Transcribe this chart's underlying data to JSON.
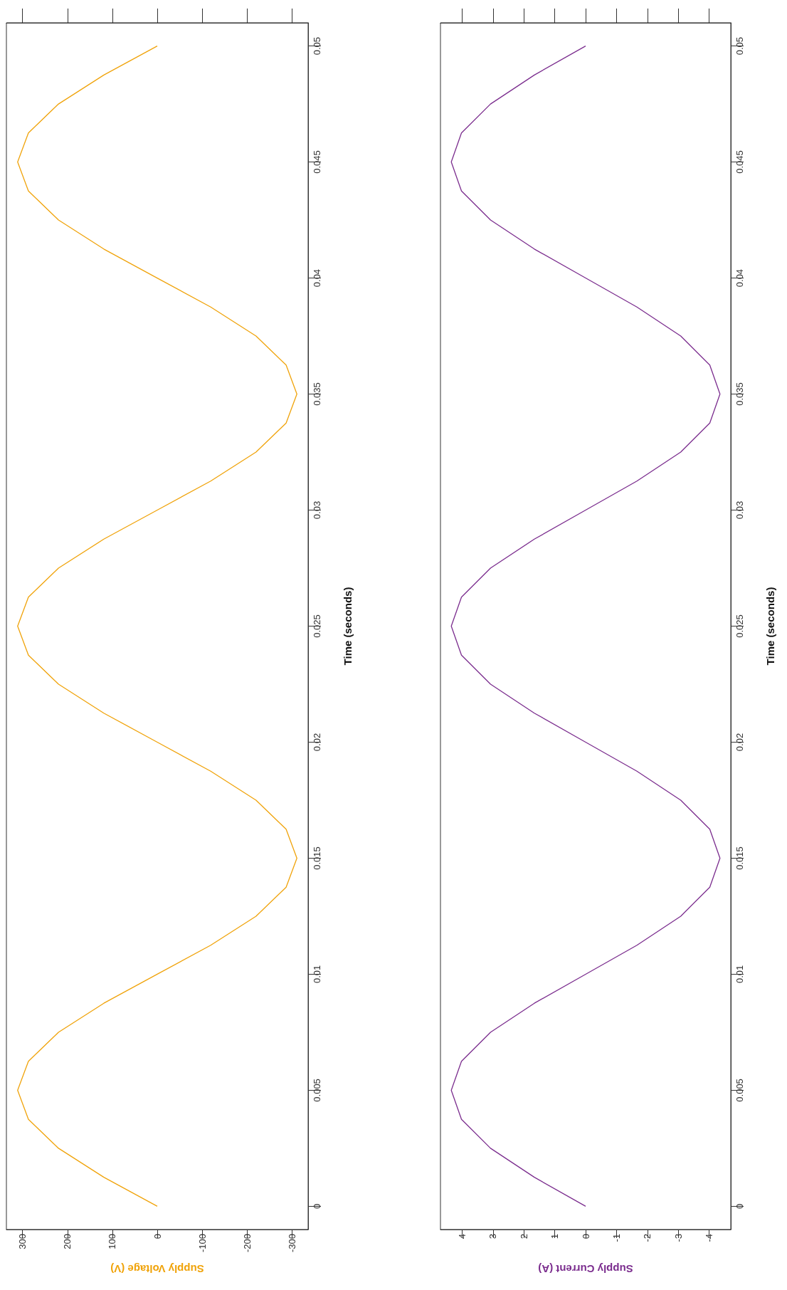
{
  "chart_data": [
    {
      "type": "line",
      "xlabel": "Supply Voltage (V)",
      "ylabel": "Time (seconds)",
      "xlim": [
        336,
        -336
      ],
      "xticks": [
        300,
        200,
        100,
        0,
        -100,
        -200,
        -300
      ],
      "ylim": [
        -0.001,
        0.051
      ],
      "yticks": [
        0,
        0.005,
        0.01,
        0.015,
        0.02,
        0.025,
        0.03,
        0.035,
        0.04,
        0.045,
        0.05
      ],
      "grid": false,
      "x": [
        0,
        119,
        220,
        287,
        311,
        287,
        220,
        119,
        0,
        -119,
        -220,
        -287,
        -311,
        -287,
        -220,
        -119,
        0,
        119,
        220,
        287,
        311,
        287,
        220,
        119,
        0,
        -119,
        -220,
        -287,
        -311,
        -287,
        -220,
        -119,
        0,
        119,
        220,
        287,
        311,
        287,
        220,
        119,
        0
      ],
      "series": [
        {
          "color": "#f0a30a",
          "values": [
            0,
            0.00125,
            0.0025,
            0.00375,
            0.005,
            0.00625,
            0.0075,
            0.00875,
            0.01,
            0.01125,
            0.0125,
            0.01375,
            0.015,
            0.01625,
            0.0175,
            0.01875,
            0.02,
            0.02125,
            0.0225,
            0.02375,
            0.025,
            0.02625,
            0.0275,
            0.02875,
            0.03,
            0.03125,
            0.0325,
            0.03375,
            0.035,
            0.03625,
            0.0375,
            0.03875,
            0.04,
            0.04125,
            0.0425,
            0.04375,
            0.045,
            0.04625,
            0.0475,
            0.04875,
            0.05
          ]
        }
      ]
    },
    {
      "type": "line",
      "xlabel": "Supply Current (A)",
      "ylabel": "Time (seconds)",
      "xlim": [
        4.7,
        -4.7
      ],
      "xticks": [
        4,
        3,
        2,
        1,
        0,
        -1,
        -2,
        -3,
        -4
      ],
      "ylim": [
        -0.001,
        0.051
      ],
      "yticks": [
        0,
        0.005,
        0.01,
        0.015,
        0.02,
        0.025,
        0.03,
        0.035,
        0.04,
        0.045,
        0.05
      ],
      "grid": false,
      "x": [
        0,
        1.66,
        3.08,
        4.02,
        4.35,
        4.02,
        3.08,
        1.66,
        0,
        -1.66,
        -3.08,
        -4.02,
        -4.35,
        -4.02,
        -3.08,
        -1.66,
        0,
        1.66,
        3.08,
        4.02,
        4.35,
        4.02,
        3.08,
        1.66,
        0,
        -1.66,
        -3.08,
        -4.02,
        -4.35,
        -4.02,
        -3.08,
        -1.66,
        0,
        1.66,
        3.08,
        4.02,
        4.35,
        4.02,
        3.08,
        1.66,
        0
      ],
      "series": [
        {
          "color": "#7b2d8e",
          "values": [
            0,
            0.00125,
            0.0025,
            0.00375,
            0.005,
            0.00625,
            0.0075,
            0.00875,
            0.01,
            0.01125,
            0.0125,
            0.01375,
            0.015,
            0.01625,
            0.0175,
            0.01875,
            0.02,
            0.02125,
            0.0225,
            0.02375,
            0.025,
            0.02625,
            0.0275,
            0.02875,
            0.03,
            0.03125,
            0.0325,
            0.03375,
            0.035,
            0.03625,
            0.0375,
            0.03875,
            0.04,
            0.04125,
            0.0425,
            0.04375,
            0.045,
            0.04625,
            0.0475,
            0.04875,
            0.05
          ]
        }
      ]
    }
  ]
}
